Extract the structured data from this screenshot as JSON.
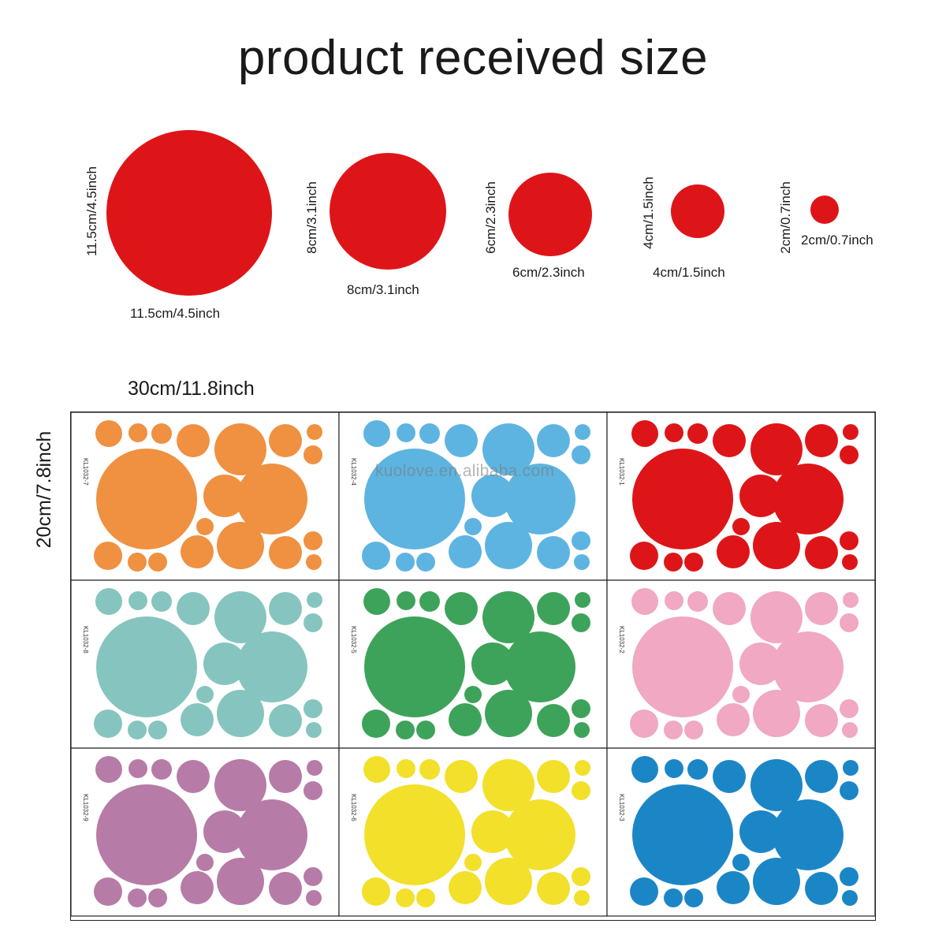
{
  "title": "product received size",
  "size_samples": [
    {
      "width_label": "11.5cm/4.5inch",
      "height_label": "11.5cm/4.5inch"
    },
    {
      "width_label": "8cm/3.1inch",
      "height_label": "8cm/3.1inch"
    },
    {
      "width_label": "6cm/2.3inch",
      "height_label": "6cm/2.3inch"
    },
    {
      "width_label": "4cm/1.5inch",
      "height_label": "4cm/1.5inch"
    },
    {
      "width_label": "2cm/0.7inch",
      "height_label": "2cm/0.7inch"
    }
  ],
  "sample_color": "#de1518",
  "sheet_width_label": "30cm/11.8inch",
  "sheet_height_label": "20cm/7.8inch",
  "watermark": "kuolove.en.alibaba.com",
  "sheets": [
    {
      "code": "KL1032-7",
      "color": "#ef9141"
    },
    {
      "code": "KL1032-4",
      "color": "#5eb4e0"
    },
    {
      "code": "KL1032-1",
      "color": "#de1518"
    },
    {
      "code": "KL1032-8",
      "color": "#86c5bf"
    },
    {
      "code": "KL1032-5",
      "color": "#3ea35a"
    },
    {
      "code": "KL1032-2",
      "color": "#f0a8c3"
    },
    {
      "code": "KL1032-9",
      "color": "#b77ba7"
    },
    {
      "code": "KL1032-6",
      "color": "#f2e02b"
    },
    {
      "code": "KL1032-3",
      "color": "#1b86c6"
    }
  ]
}
